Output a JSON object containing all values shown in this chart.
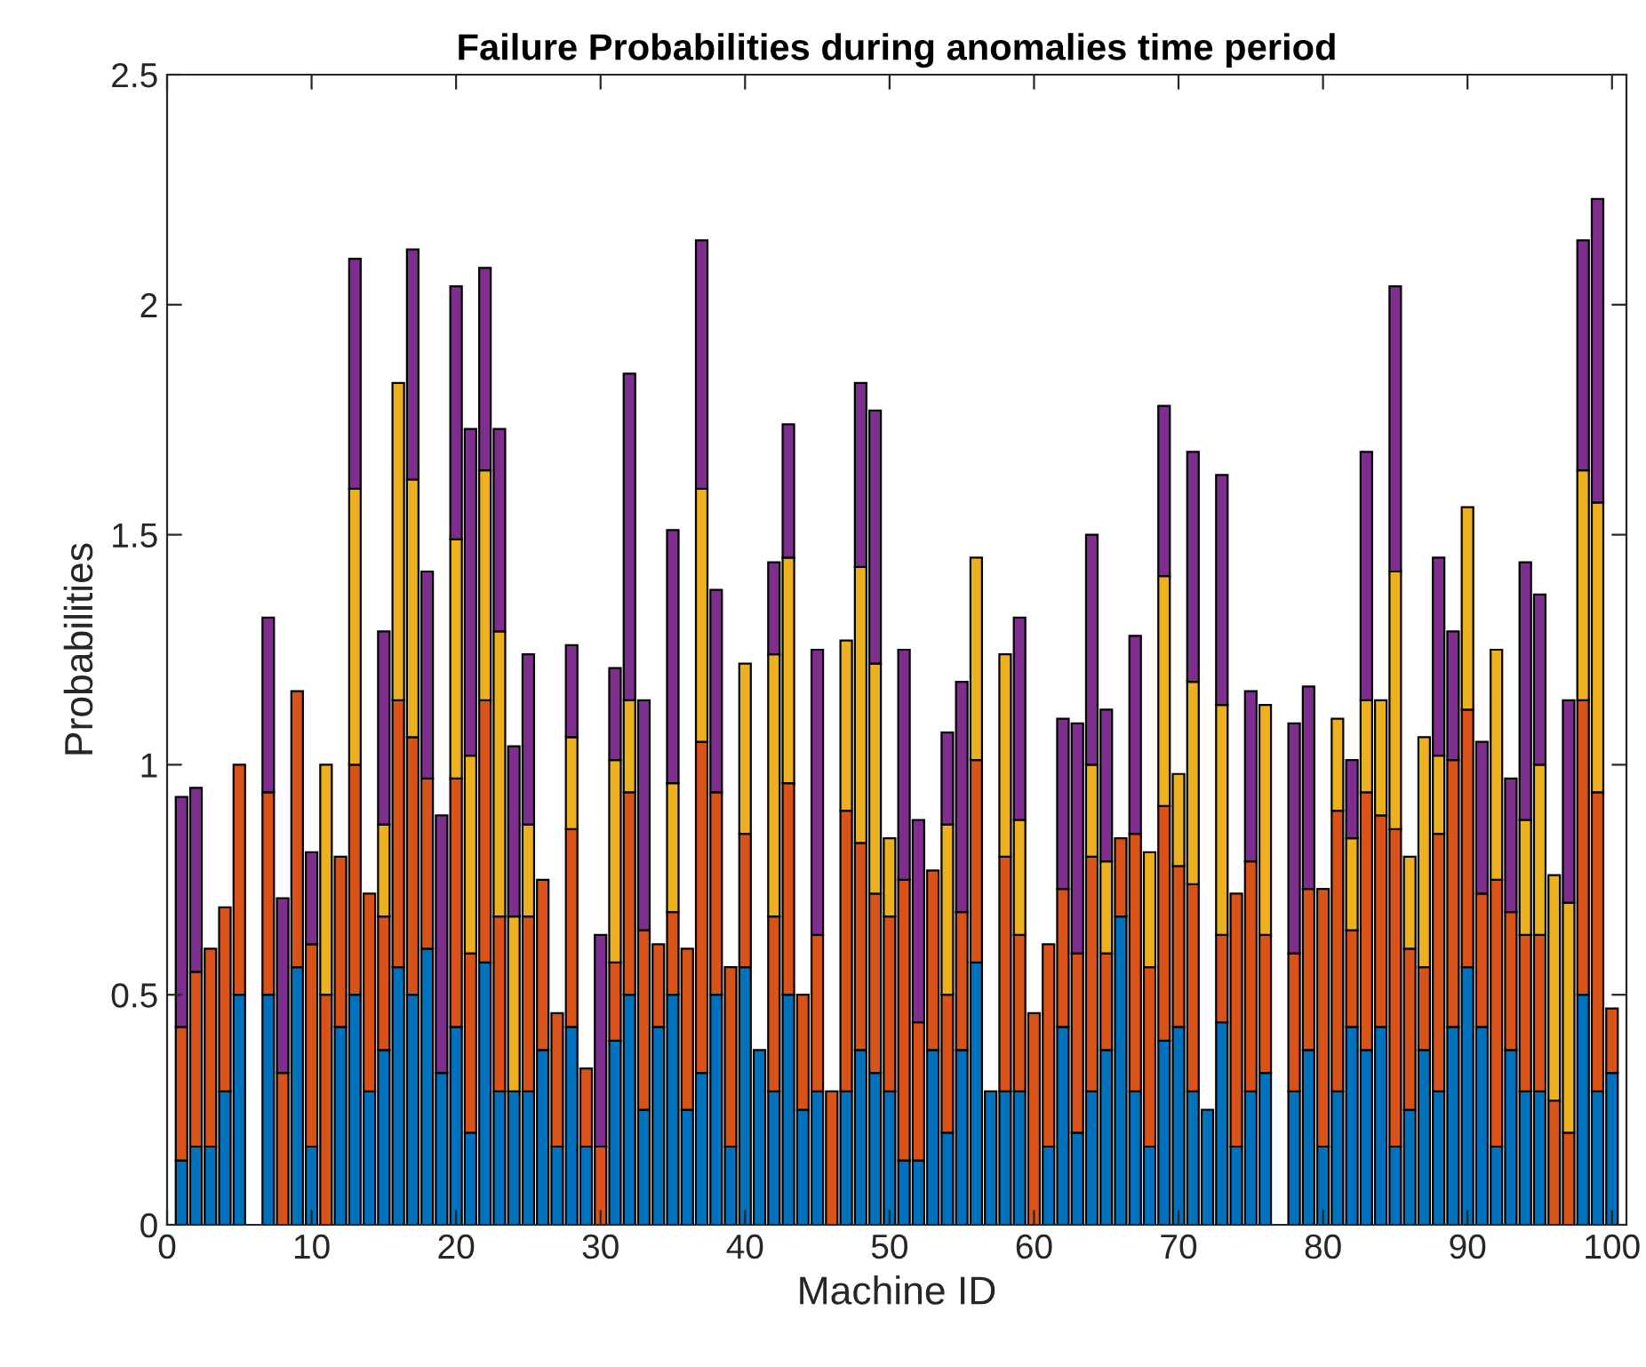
{
  "chart_data": {
    "type": "bar",
    "stacked": true,
    "title": "Failure Probabilities during anomalies time period",
    "xlabel": "Machine ID",
    "ylabel": "Probabilities",
    "x": [
      1,
      2,
      3,
      4,
      5,
      6,
      7,
      8,
      9,
      10,
      11,
      12,
      13,
      14,
      15,
      16,
      17,
      18,
      19,
      20,
      21,
      22,
      23,
      24,
      25,
      26,
      27,
      28,
      29,
      30,
      31,
      32,
      33,
      34,
      35,
      36,
      37,
      38,
      39,
      40,
      41,
      42,
      43,
      44,
      45,
      46,
      47,
      48,
      49,
      50,
      51,
      52,
      53,
      54,
      55,
      56,
      57,
      58,
      59,
      60,
      61,
      62,
      63,
      64,
      65,
      66,
      67,
      68,
      69,
      70,
      71,
      72,
      73,
      74,
      75,
      76,
      77,
      78,
      79,
      80,
      81,
      82,
      83,
      84,
      85,
      86,
      87,
      88,
      89,
      90,
      91,
      92,
      93,
      94,
      95,
      96,
      97,
      98,
      99,
      100
    ],
    "series": [
      {
        "color": "#0072bd",
        "values": [
          0.14,
          0.17,
          0.17,
          0.29,
          0.5,
          0,
          0.5,
          0,
          0.56,
          0.17,
          0,
          0.43,
          0.5,
          0.29,
          0.38,
          0.56,
          0.5,
          0.6,
          0.33,
          0.43,
          0.2,
          0.57,
          0.29,
          0.29,
          0.29,
          0.38,
          0.17,
          0.43,
          0.17,
          0,
          0.4,
          0.5,
          0.25,
          0.43,
          0.5,
          0.25,
          0.33,
          0.5,
          0.17,
          0.56,
          0.38,
          0.29,
          0.5,
          0.25,
          0.29,
          0,
          0.29,
          0.38,
          0.33,
          0.29,
          0.14,
          0.14,
          0.38,
          0.2,
          0.38,
          0.57,
          0.29,
          0.29,
          0.29,
          0,
          0.17,
          0.43,
          0.2,
          0.29,
          0.38,
          0.67,
          0.29,
          0.17,
          0.4,
          0.43,
          0.29,
          0.25,
          0.44,
          0.17,
          0.29,
          0.33,
          0,
          0.29,
          0.38,
          0.17,
          0.29,
          0.43,
          0.38,
          0.43,
          0.17,
          0.25,
          0.38,
          0.29,
          0.43,
          0.56,
          0.43,
          0.17,
          0.38,
          0.29,
          0.29,
          0,
          0,
          0.5,
          0.29,
          0.33
        ]
      },
      {
        "color": "#d95319",
        "values": [
          0.29,
          0.38,
          0.43,
          0.4,
          0.5,
          0,
          0.44,
          0.33,
          0.6,
          0.44,
          0.5,
          0.37,
          0.5,
          0.43,
          0.29,
          0.58,
          0.56,
          0.37,
          0,
          0.54,
          0.39,
          0.57,
          0.38,
          0,
          0.38,
          0.37,
          0.29,
          0.43,
          0.17,
          0.17,
          0.17,
          0.44,
          0.39,
          0.18,
          0.18,
          0.35,
          0.72,
          0.44,
          0.39,
          0.29,
          0,
          0.38,
          0.46,
          0.25,
          0.34,
          0.29,
          0.61,
          0.45,
          0.39,
          0.38,
          0.61,
          0.3,
          0.39,
          0.3,
          0.3,
          0.44,
          0,
          0.51,
          0.34,
          0.46,
          0.44,
          0.3,
          0.39,
          0.51,
          0.21,
          0.17,
          0.56,
          0.39,
          0.51,
          0.35,
          0.45,
          0,
          0.19,
          0.55,
          0.5,
          0.3,
          0,
          0.3,
          0.35,
          0.56,
          0.61,
          0.21,
          0.56,
          0.46,
          0.69,
          0.35,
          0.18,
          0.56,
          0.58,
          0.56,
          0.29,
          0.58,
          0.3,
          0.34,
          0.34,
          0.27,
          0.2,
          0.64,
          0.65,
          0.14
        ]
      },
      {
        "color": "#edb120",
        "values": [
          0,
          0,
          0,
          0,
          0,
          0,
          0,
          0,
          0,
          0,
          0.5,
          0,
          0.6,
          0,
          0.2,
          0.69,
          0.56,
          0,
          0,
          0.52,
          0.43,
          0.5,
          0.62,
          0.38,
          0.2,
          0,
          0,
          0.2,
          0,
          0,
          0.44,
          0.2,
          0,
          0,
          0.28,
          0,
          0.55,
          0,
          0,
          0.37,
          0,
          0.57,
          0.49,
          0,
          0,
          0,
          0.37,
          0.6,
          0.5,
          0.17,
          0,
          0,
          0,
          0.37,
          0,
          0.44,
          0,
          0.44,
          0.25,
          0,
          0,
          0,
          0,
          0.2,
          0.2,
          0,
          0,
          0.25,
          0.5,
          0.2,
          0.44,
          0,
          0.5,
          0,
          0,
          0.5,
          0,
          0,
          0,
          0,
          0.2,
          0.2,
          0.2,
          0.25,
          0.56,
          0.2,
          0.5,
          0.17,
          0,
          0.44,
          0,
          0.5,
          0,
          0.25,
          0.37,
          0.49,
          0.5,
          0.5,
          0.63,
          0
        ]
      },
      {
        "color": "#7e2f8e",
        "values": [
          0.5,
          0.4,
          0,
          0,
          0,
          0,
          0.38,
          0.38,
          0,
          0.2,
          0,
          0,
          0.5,
          0,
          0.42,
          0,
          0.5,
          0.45,
          0.56,
          0.55,
          0.71,
          0.44,
          0.44,
          0.37,
          0.37,
          0,
          0,
          0.2,
          0,
          0.46,
          0.2,
          0.71,
          0.5,
          0,
          0.55,
          0,
          0.54,
          0.44,
          0,
          0,
          0,
          0.2,
          0.29,
          0,
          0.62,
          0,
          0,
          0.4,
          0.55,
          0,
          0.5,
          0.44,
          0,
          0.2,
          0.5,
          0,
          0,
          0,
          0.44,
          0,
          0,
          0.37,
          0.5,
          0.5,
          0.33,
          0,
          0.43,
          0,
          0.37,
          0,
          0.5,
          0,
          0.5,
          0,
          0.37,
          0,
          0,
          0.5,
          0.44,
          0,
          0,
          0.17,
          0.54,
          0,
          0.62,
          0,
          0,
          0.43,
          0.28,
          0,
          0.33,
          0,
          0.29,
          0.56,
          0.37,
          0,
          0.44,
          0.5,
          0.66,
          0
        ]
      }
    ],
    "xlim": [
      0,
      101
    ],
    "xticks": [
      0,
      10,
      20,
      30,
      40,
      50,
      60,
      70,
      80,
      90,
      100
    ],
    "ylim": [
      0,
      2.5
    ],
    "yticks": [
      0,
      {
        "value": 0.5,
        "label": "0.5"
      },
      1,
      {
        "value": 1.5,
        "label": "1.5"
      },
      2,
      {
        "value": 2.5,
        "label": "2.5"
      }
    ],
    "grid": false
  }
}
